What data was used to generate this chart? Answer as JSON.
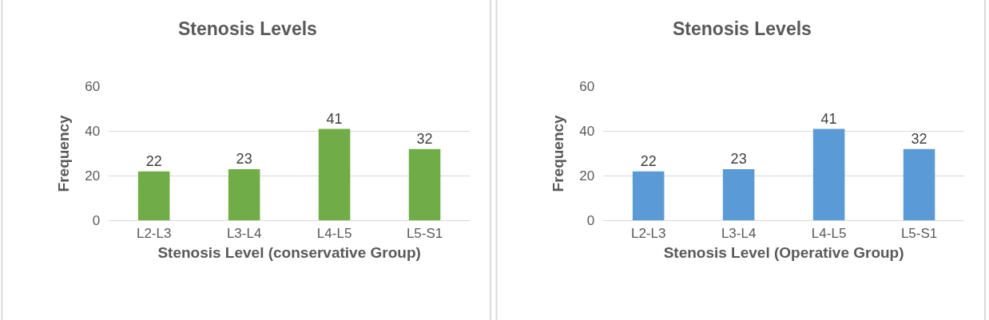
{
  "chart_data": [
    {
      "type": "bar",
      "title": "Stenosis Levels",
      "xlabel": "Stenosis Level (conservative Group)",
      "ylabel": "Frequency",
      "categories": [
        "L2-L3",
        "L3-L4",
        "L4-L5",
        "L5-S1"
      ],
      "values": [
        22,
        23,
        41,
        32
      ],
      "color": "#70ad47",
      "ylim": [
        0,
        60
      ],
      "yticks": [
        0,
        20,
        40,
        60
      ],
      "grid": "y",
      "data_labels": true
    },
    {
      "type": "bar",
      "title": "Stenosis Levels",
      "xlabel": "Stenosis Level (Operative Group)",
      "ylabel": "Frequency",
      "categories": [
        "L2-L3",
        "L3-L4",
        "L4-L5",
        "L5-S1"
      ],
      "values": [
        22,
        23,
        41,
        32
      ],
      "color": "#5b9bd5",
      "ylim": [
        0,
        60
      ],
      "yticks": [
        0,
        20,
        40,
        60
      ],
      "grid": "y",
      "data_labels": true
    }
  ]
}
